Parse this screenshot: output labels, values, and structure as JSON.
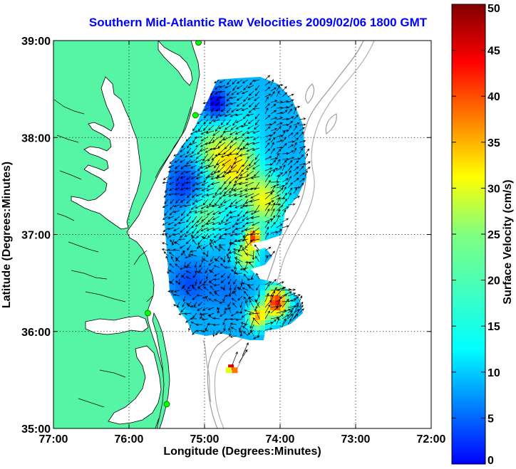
{
  "title": "Southern Mid-Atlantic Raw Velocities 2009/02/06 1800 GMT",
  "map": {
    "xlabel": "Longitude (Degrees:Minutes)",
    "ylabel": "Latitude (Degrees:Minutes)",
    "lon_range": [
      -77,
      -72
    ],
    "lat_range": [
      35,
      39
    ],
    "x_ticks": [
      {
        "value": -77,
        "label": "77:00"
      },
      {
        "value": -76,
        "label": "76:00"
      },
      {
        "value": -75,
        "label": "75:00"
      },
      {
        "value": -74,
        "label": "74:00"
      },
      {
        "value": -73,
        "label": "73:00"
      },
      {
        "value": -72,
        "label": "72:00"
      }
    ],
    "y_ticks": [
      {
        "value": 39,
        "label": "39:00"
      },
      {
        "value": 38,
        "label": "38:00"
      },
      {
        "value": 37,
        "label": "37:00"
      },
      {
        "value": 36,
        "label": "36:00"
      },
      {
        "value": 35,
        "label": "35:00"
      }
    ],
    "land_color": "#55f5a5",
    "ocean_color": "#ffffff",
    "hf_radar_sites": [
      {
        "lon": -75.08,
        "lat": 38.98
      },
      {
        "lon": -75.12,
        "lat": 38.23
      },
      {
        "lon": -75.75,
        "lat": 36.19
      },
      {
        "lon": -75.5,
        "lat": 35.25
      }
    ]
  },
  "colorbar": {
    "label": "Surface Velocity (cm/s)",
    "min": 0,
    "max": 50,
    "ticks": [
      {
        "value": 0,
        "label": "0"
      },
      {
        "value": 5,
        "label": "5"
      },
      {
        "value": 10,
        "label": "10"
      },
      {
        "value": 15,
        "label": "15"
      },
      {
        "value": 20,
        "label": "20"
      },
      {
        "value": 25,
        "label": "25"
      },
      {
        "value": 30,
        "label": "30"
      },
      {
        "value": 35,
        "label": "35"
      },
      {
        "value": 40,
        "label": "40"
      },
      {
        "value": 45,
        "label": "45"
      },
      {
        "value": 50,
        "label": "50"
      }
    ]
  },
  "chart_data": {
    "type": "heatmap",
    "title": "Southern Mid-Atlantic Raw Velocities 2009/02/06 1800 GMT",
    "xlabel": "Longitude (Degrees:Minutes)",
    "ylabel": "Latitude (Degrees:Minutes)",
    "colorbar_label": "Surface Velocity (cm/s)",
    "xlim": [
      -77,
      -72
    ],
    "ylim": [
      35,
      39
    ],
    "clim": [
      0,
      50
    ],
    "velocity_blobs": [
      {
        "lon": -74.6,
        "lat": 37.7,
        "speed": 32,
        "spread": 0.3
      },
      {
        "lon": -74.2,
        "lat": 37.35,
        "speed": 30,
        "spread": 0.25
      },
      {
        "lon": -74.9,
        "lat": 37.9,
        "speed": 24,
        "spread": 0.25
      },
      {
        "lon": -74.45,
        "lat": 38.2,
        "speed": 17,
        "spread": 0.25
      },
      {
        "lon": -75.0,
        "lat": 37.2,
        "speed": 24,
        "spread": 0.25
      },
      {
        "lon": -75.25,
        "lat": 37.5,
        "speed": 8,
        "spread": 0.25
      },
      {
        "lon": -74.85,
        "lat": 38.35,
        "speed": 5,
        "spread": 0.15
      },
      {
        "lon": -74.35,
        "lat": 36.97,
        "speed": 38,
        "spread": 0.1
      },
      {
        "lon": -74.45,
        "lat": 36.78,
        "speed": 30,
        "spread": 0.15
      },
      {
        "lon": -74.05,
        "lat": 36.3,
        "speed": 43,
        "spread": 0.15
      },
      {
        "lon": -74.3,
        "lat": 36.15,
        "speed": 35,
        "spread": 0.12
      },
      {
        "lon": -75.2,
        "lat": 36.5,
        "speed": 10,
        "spread": 0.25
      },
      {
        "lon": -74.7,
        "lat": 36.45,
        "speed": 12,
        "spread": 0.25
      },
      {
        "lon": -75.35,
        "lat": 36.2,
        "speed": 18,
        "spread": 0.15
      },
      {
        "lon": -74.62,
        "lat": 35.62,
        "speed": 42,
        "spread": 0.07
      },
      {
        "lon": -74.2,
        "lat": 37.7,
        "speed": 14,
        "spread": 0.2
      }
    ],
    "background_speed": 15
  }
}
